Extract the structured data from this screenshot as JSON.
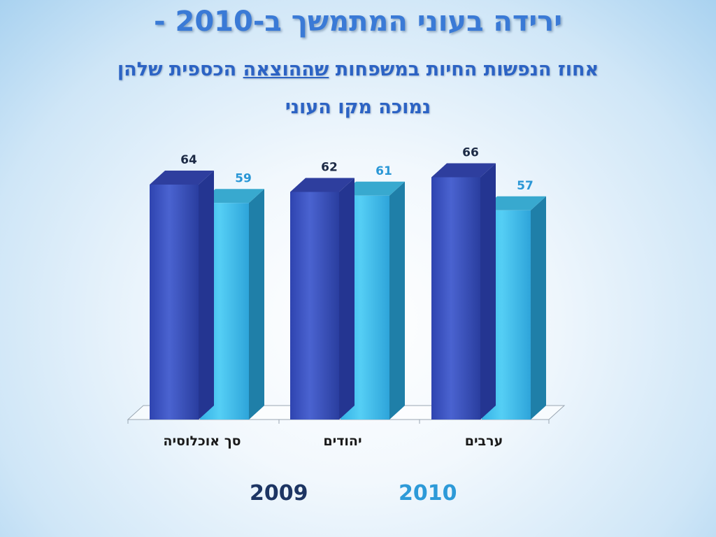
{
  "title": "ירידה בעוני המתמשך ב-2010 -",
  "subtitle": {
    "before": "אחוז הנפשות החיות במשפחות ",
    "underlined": "שההוצאה",
    "after": " הכספית שלהן",
    "line2": "נמוכה מקו העוני"
  },
  "colors": {
    "series_2009": "#3f56c4",
    "series_2010": "#45c0ee",
    "title": "#3a7ad6"
  },
  "chart_data": {
    "type": "bar",
    "categories": [
      "סך אוכלוסיה",
      "יהודים",
      "ערבים"
    ],
    "series": [
      {
        "name": "2009",
        "values": [
          64,
          62,
          66
        ]
      },
      {
        "name": "2010",
        "values": [
          59,
          61,
          57
        ]
      }
    ],
    "ylim": [
      0,
      70
    ],
    "grid": false,
    "legend": "bottom",
    "data_labels": true
  }
}
